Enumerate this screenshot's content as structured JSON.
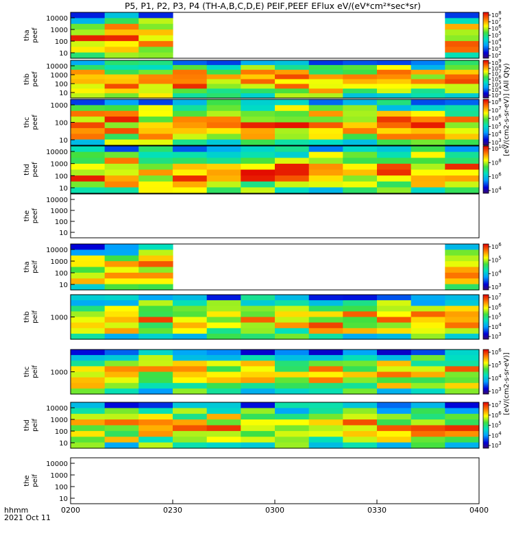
{
  "chart_data": {
    "type": "heatmap",
    "title": "P5, P1, P2, P3, P4 (TH-A,B,C,D,E) PEIF,PEEF EFlux eV/(eV*cm²*sec*sr)",
    "x_axis": {
      "ticks": [
        "0200",
        "0230",
        "0300",
        "0330",
        "0400"
      ],
      "row_label": "hhmm",
      "date": "2021 Oct 11"
    },
    "colorbar_label_top": "[eV/(cm2-s-sr-eV)] (All Qty)",
    "colorbar_label_bottom": "[eV/(cm2-s-sr-eV)]",
    "panels": [
      {
        "id": "tha_peef",
        "label1": "tha",
        "label2": "peef",
        "yticks": [
          "10000",
          "1000",
          "100",
          "10"
        ],
        "cbar_ticks": [
          "10^8",
          "10^7",
          "10^6",
          "10^5",
          "10^4",
          "10^3",
          "10^2"
        ]
      },
      {
        "id": "thb_peef",
        "label1": "thb",
        "label2": "peef",
        "yticks": [
          "10000",
          "1000",
          "100",
          "10"
        ],
        "cbar_ticks": [
          "10^9",
          "10^8",
          "10^7",
          "10^6",
          "10^5",
          "10^4",
          "10^3"
        ]
      },
      {
        "id": "thc_peef",
        "label1": "thc",
        "label2": "peef",
        "yticks": [
          "1000",
          "100",
          "10"
        ],
        "cbar_ticks": [
          "10^8",
          "10^7",
          "10^6",
          "10^5",
          "10^4",
          "10^3"
        ]
      },
      {
        "id": "thd_peef",
        "label1": "thd",
        "label2": "peef",
        "yticks": [
          "10000",
          "1000",
          "100",
          "10"
        ],
        "cbar_ticks": [
          "10^10",
          "10^8",
          "10^6",
          "10^4"
        ]
      },
      {
        "id": "the_peef",
        "label1": "the",
        "label2": "peef",
        "yticks": [
          "10000",
          "1000",
          "100",
          "10"
        ],
        "cbar_ticks": []
      },
      {
        "id": "tha_peif",
        "label1": "tha",
        "label2": "peif",
        "yticks": [
          "10000",
          "1000",
          "100",
          "10"
        ],
        "cbar_ticks": [
          "10^6",
          "10^5",
          "10^4",
          "10^3"
        ]
      },
      {
        "id": "thb_peif",
        "label1": "thb",
        "label2": "peif",
        "yticks": [
          "1000"
        ],
        "cbar_ticks": [
          "10^7",
          "10^6",
          "10^5",
          "10^4",
          "10^3"
        ]
      },
      {
        "id": "thc_peif",
        "label1": "thc",
        "label2": "peif",
        "yticks": [
          "1000"
        ],
        "cbar_ticks": [
          "10^6",
          "10^5",
          "10^4",
          "10^3"
        ]
      },
      {
        "id": "thd_peif",
        "label1": "thd",
        "label2": "peif",
        "yticks": [
          "10000",
          "1000",
          "100",
          "10"
        ],
        "cbar_ticks": [
          "10^7",
          "10^6",
          "10^5",
          "10^4",
          "10^3"
        ]
      },
      {
        "id": "the_peif",
        "label1": "the",
        "label2": "peif",
        "yticks": [
          "10000",
          "1000",
          "100",
          "10"
        ],
        "cbar_ticks": []
      }
    ]
  }
}
